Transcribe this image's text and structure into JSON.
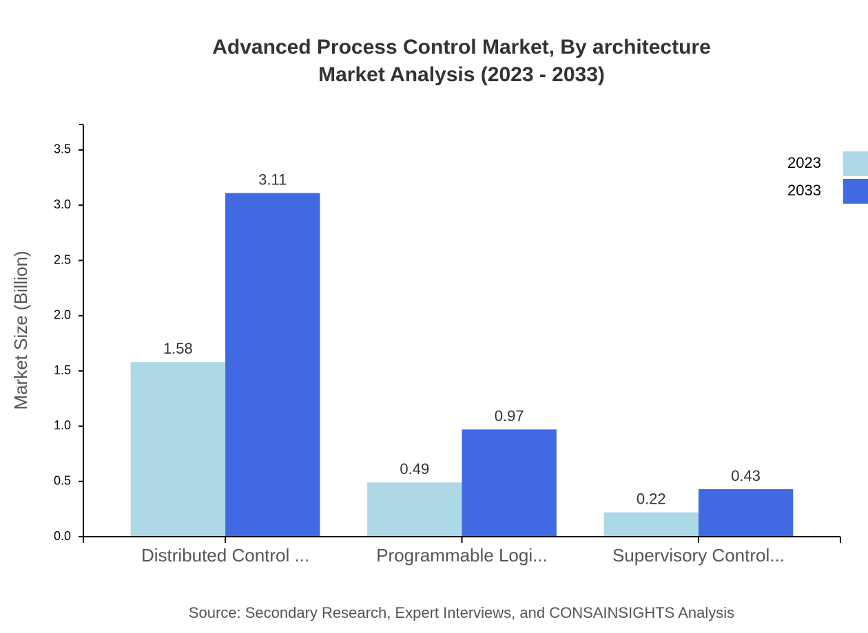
{
  "chart_data": {
    "type": "bar",
    "title": "Advanced Process Control Market, By architecture",
    "subtitle": "Market Analysis (2023 - 2033)",
    "y_label": "Market Size (Billion)",
    "source": "Source: Secondary Research, Expert Interviews, and CONSAINSIGHTS Analysis",
    "categories": [
      "Distributed Control ...",
      "Programmable Logi...",
      "Supervisory Control..."
    ],
    "series": [
      {
        "name": "2023",
        "color": "#add8e6",
        "values": [
          1.58,
          0.49,
          0.22
        ]
      },
      {
        "name": "2033",
        "color": "#4169e1",
        "values": [
          3.11,
          0.97,
          0.43
        ]
      }
    ],
    "ylim": [
      0,
      3.73
    ],
    "yticks": [
      {
        "value": 0,
        "label": "0.0"
      },
      0.5,
      {
        "value": 1,
        "label": "1.0"
      },
      1.5,
      {
        "value": 2,
        "label": "2.0"
      },
      2.5,
      {
        "value": 3,
        "label": "3.0"
      },
      3.5
    ],
    "legend": "top-right",
    "grid": false
  }
}
